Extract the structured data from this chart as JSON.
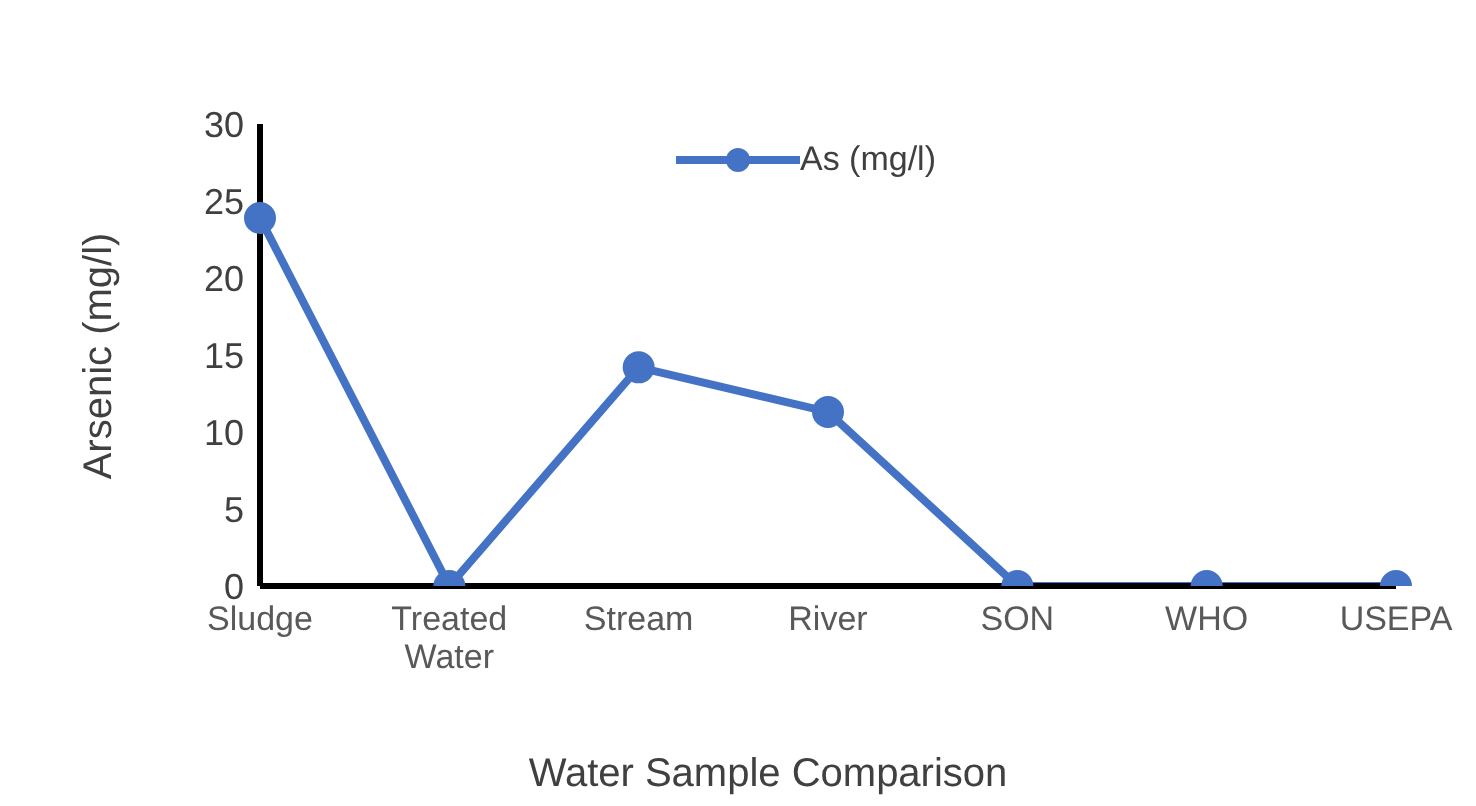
{
  "chart_data": {
    "type": "line",
    "xlabel": "Water Sample Comparison",
    "ylabel": "Arsenic (mg/l)",
    "categories": [
      "Sludge",
      "Treated Water",
      "Stream",
      "River",
      "SON",
      "WHO",
      "USEPA"
    ],
    "series": [
      {
        "name": "As  (mg/l)",
        "color": "#4472c4",
        "values": [
          23.9,
          0,
          14.2,
          11.3,
          0,
          0,
          0
        ]
      }
    ],
    "ylim": [
      0,
      30
    ],
    "yticks": [
      0,
      5,
      10,
      15,
      20,
      25,
      30
    ],
    "grid": false,
    "legend": "top",
    "marker": "circle",
    "line_style": "solid"
  }
}
